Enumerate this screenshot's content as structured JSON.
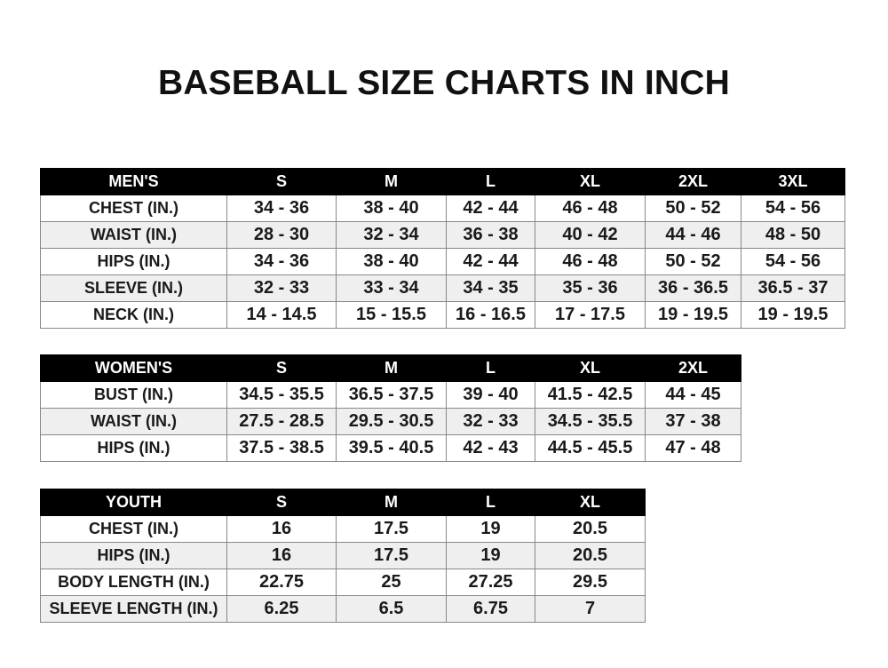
{
  "title": "BASEBALL SIZE CHARTS IN INCH",
  "tables": [
    {
      "id": "mens",
      "header": [
        "MEN'S",
        "S",
        "M",
        "L",
        "XL",
        "2XL",
        "3XL"
      ],
      "rows": [
        [
          "CHEST (IN.)",
          "34 - 36",
          "38 - 40",
          "42 - 44",
          "46 - 48",
          "50 - 52",
          "54 - 56"
        ],
        [
          "WAIST (IN.)",
          "28 - 30",
          "32 - 34",
          "36 - 38",
          "40 - 42",
          "44 - 46",
          "48 - 50"
        ],
        [
          "HIPS (IN.)",
          "34 - 36",
          "38 - 40",
          "42 - 44",
          "46 - 48",
          "50 - 52",
          "54 - 56"
        ],
        [
          "SLEEVE (IN.)",
          "32 - 33",
          "33 - 34",
          "34 - 35",
          "35 - 36",
          "36 - 36.5",
          "36.5 - 37"
        ],
        [
          "NECK (IN.)",
          "14 - 14.5",
          "15 - 15.5",
          "16 - 16.5",
          "17 - 17.5",
          "19 - 19.5",
          "19 - 19.5"
        ]
      ]
    },
    {
      "id": "womens",
      "header": [
        "WOMEN'S",
        "S",
        "M",
        "L",
        "XL",
        "2XL"
      ],
      "rows": [
        [
          "BUST (IN.)",
          "34.5 - 35.5",
          "36.5 - 37.5",
          "39 - 40",
          "41.5 - 42.5",
          "44 - 45"
        ],
        [
          "WAIST (IN.)",
          "27.5 - 28.5",
          "29.5 - 30.5",
          "32 - 33",
          "34.5 - 35.5",
          "37 - 38"
        ],
        [
          "HIPS (IN.)",
          "37.5 - 38.5",
          "39.5 - 40.5",
          "42 - 43",
          "44.5 - 45.5",
          "47 - 48"
        ]
      ]
    },
    {
      "id": "youth",
      "header": [
        "YOUTH",
        "S",
        "M",
        "L",
        "XL"
      ],
      "rows": [
        [
          "CHEST (IN.)",
          "16",
          "17.5",
          "19",
          "20.5"
        ],
        [
          "HIPS (IN.)",
          "16",
          "17.5",
          "19",
          "20.5"
        ],
        [
          "BODY LENGTH (IN.)",
          "22.75",
          "25",
          "27.25",
          "29.5"
        ],
        [
          "SLEEVE LENGTH (IN.)",
          "6.25",
          "6.5",
          "6.75",
          "7"
        ]
      ]
    }
  ]
}
